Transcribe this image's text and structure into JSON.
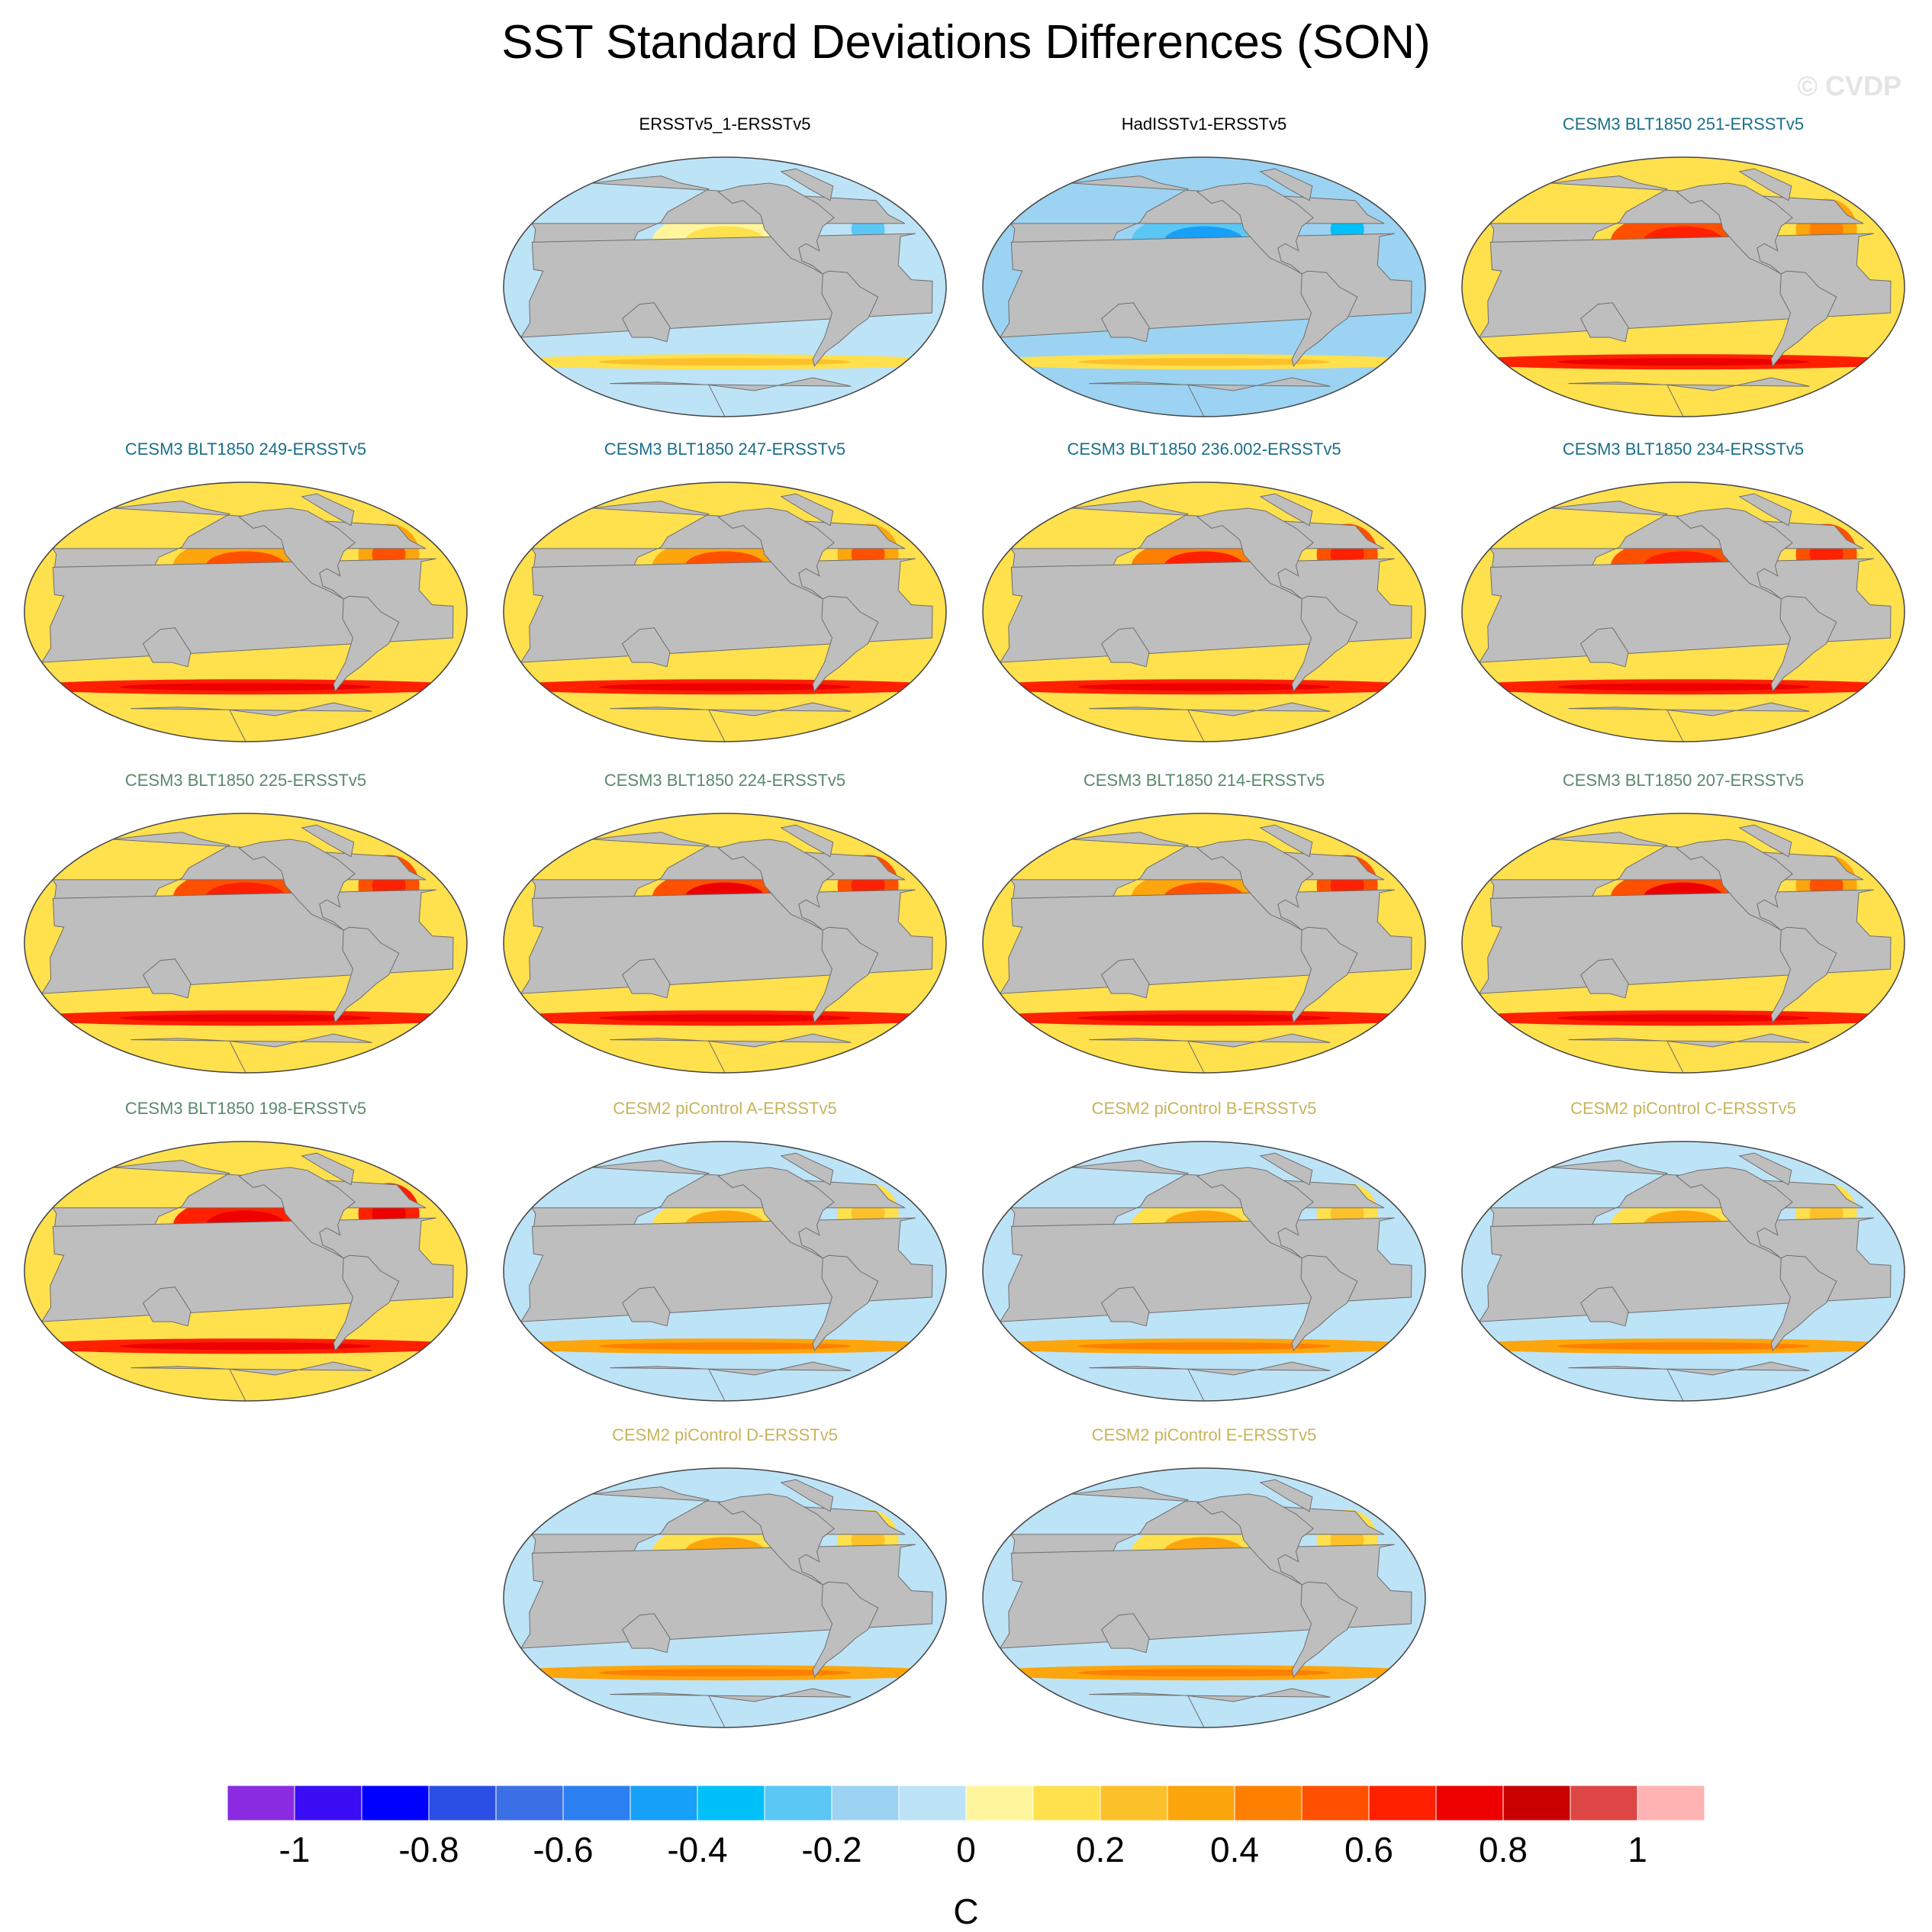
{
  "title": "SST Standard Deviations Differences (SON)",
  "watermark": "© CVDP",
  "colorbar": {
    "unit": "C",
    "ticks": [
      "-1",
      "-0.8",
      "-0.6",
      "-0.4",
      "-0.2",
      "0",
      "0.2",
      "0.4",
      "0.6",
      "0.8",
      "1"
    ],
    "colors": [
      "#8a2be2",
      "#3a0df5",
      "#0000ff",
      "#2b4fe4",
      "#3a6fe6",
      "#2b7ff0",
      "#17a0f7",
      "#00c0fa",
      "#5bc7f5",
      "#9cd3f2",
      "#bde3f7",
      "#fff59d",
      "#ffe04d",
      "#fcc12a",
      "#fca50d",
      "#ff7f00",
      "#ff5000",
      "#ff2000",
      "#ee0000",
      "#c80000",
      "#de4545",
      "#ffb3b3"
    ]
  },
  "chart_data": {
    "type": "heatmap",
    "title": "SST Standard Deviations Differences (SON)",
    "colorbar_range": [
      -1.1,
      1.1
    ],
    "colorbar_label": "C",
    "panels": [
      {
        "name": "ERSSTv5_1-ERSSTv5",
        "title_color": "#000000",
        "eq_pacific": 0.1,
        "nh_pacific": 0.05,
        "southern_ocean": 0.1,
        "indian": -0.1,
        "atlantic": -0.1,
        "background": -0.1
      },
      {
        "name": "HadISSTv1-ERSSTv5",
        "title_color": "#000000",
        "eq_pacific": -0.2,
        "nh_pacific": -0.3,
        "southern_ocean": 0.1,
        "indian": -0.2,
        "atlantic": -0.2,
        "background": -0.2
      },
      {
        "name": "CESM3 BLT1850 251-ERSSTv5",
        "title_color": "#1a6f8a",
        "eq_pacific": 0.85,
        "nh_pacific": 0.5,
        "southern_ocean": 0.6,
        "indian": 0.6,
        "atlantic": 0.3,
        "background": 0.1
      },
      {
        "name": "CESM3 BLT1850 249-ERSSTv5",
        "title_color": "#1a6f8a",
        "eq_pacific": 0.85,
        "nh_pacific": 0.4,
        "southern_ocean": 0.6,
        "indian": 0.7,
        "atlantic": 0.4,
        "background": 0.1
      },
      {
        "name": "CESM3 BLT1850 247-ERSSTv5",
        "title_color": "#1a6f8a",
        "eq_pacific": 0.8,
        "nh_pacific": 0.4,
        "southern_ocean": 0.6,
        "indian": 0.8,
        "atlantic": 0.4,
        "background": 0.1
      },
      {
        "name": "CESM3 BLT1850 236.002-ERSSTv5",
        "title_color": "#1a6f8a",
        "eq_pacific": 0.75,
        "nh_pacific": 0.45,
        "southern_ocean": 0.6,
        "indian": 0.6,
        "atlantic": 0.5,
        "background": 0.1
      },
      {
        "name": "CESM3 BLT1850 234-ERSSTv5",
        "title_color": "#1a6f8a",
        "eq_pacific": 0.9,
        "nh_pacific": 0.5,
        "southern_ocean": 0.6,
        "indian": 0.6,
        "atlantic": 0.5,
        "background": 0.1
      },
      {
        "name": "CESM3 BLT1850 225-ERSSTv5",
        "title_color": "#5a8a6a",
        "eq_pacific": 0.6,
        "nh_pacific": 0.5,
        "southern_ocean": 0.6,
        "indian": 0.6,
        "atlantic": 0.5,
        "background": 0.1
      },
      {
        "name": "CESM3 BLT1850 224-ERSSTv5",
        "title_color": "#5a8a6a",
        "eq_pacific": 0.6,
        "nh_pacific": 0.55,
        "southern_ocean": 0.6,
        "indian": 0.7,
        "atlantic": 0.5,
        "background": 0.15
      },
      {
        "name": "CESM3 BLT1850 214-ERSSTv5",
        "title_color": "#5a8a6a",
        "eq_pacific": 0.65,
        "nh_pacific": 0.4,
        "southern_ocean": 0.6,
        "indian": 0.7,
        "atlantic": 0.5,
        "background": 0.1
      },
      {
        "name": "CESM3 BLT1850 207-ERSSTv5",
        "title_color": "#5a8a6a",
        "eq_pacific": 0.65,
        "nh_pacific": 0.55,
        "southern_ocean": 0.6,
        "indian": 0.8,
        "atlantic": 0.4,
        "background": 0.1
      },
      {
        "name": "CESM3 BLT1850 198-ERSSTv5",
        "title_color": "#5a8a6a",
        "eq_pacific": 0.6,
        "nh_pacific": 0.6,
        "southern_ocean": 0.6,
        "indian": 0.8,
        "atlantic": 0.6,
        "background": 0.1
      },
      {
        "name": "CESM2 piControl A-ERSSTv5",
        "title_color": "#c8b45a",
        "eq_pacific": 0.55,
        "nh_pacific": 0.2,
        "southern_ocean": 0.3,
        "indian": 0.5,
        "atlantic": 0.1,
        "background": -0.05
      },
      {
        "name": "CESM2 piControl B-ERSSTv5",
        "title_color": "#c8b45a",
        "eq_pacific": 0.55,
        "nh_pacific": 0.2,
        "southern_ocean": 0.3,
        "indian": 0.5,
        "atlantic": 0.1,
        "background": -0.05
      },
      {
        "name": "CESM2 piControl C-ERSSTv5",
        "title_color": "#c8b45a",
        "eq_pacific": 0.7,
        "nh_pacific": 0.2,
        "southern_ocean": 0.3,
        "indian": 0.5,
        "atlantic": 0.1,
        "background": -0.05
      },
      {
        "name": "CESM2 piControl D-ERSSTv5",
        "title_color": "#c8b45a",
        "eq_pacific": 0.55,
        "nh_pacific": 0.2,
        "southern_ocean": 0.3,
        "indian": 0.5,
        "atlantic": 0.1,
        "background": -0.1
      },
      {
        "name": "CESM2 piControl E-ERSSTv5",
        "title_color": "#c8b45a",
        "eq_pacific": 0.5,
        "nh_pacific": 0.2,
        "southern_ocean": 0.3,
        "indian": 0.5,
        "atlantic": 0.1,
        "background": -0.1
      }
    ]
  }
}
